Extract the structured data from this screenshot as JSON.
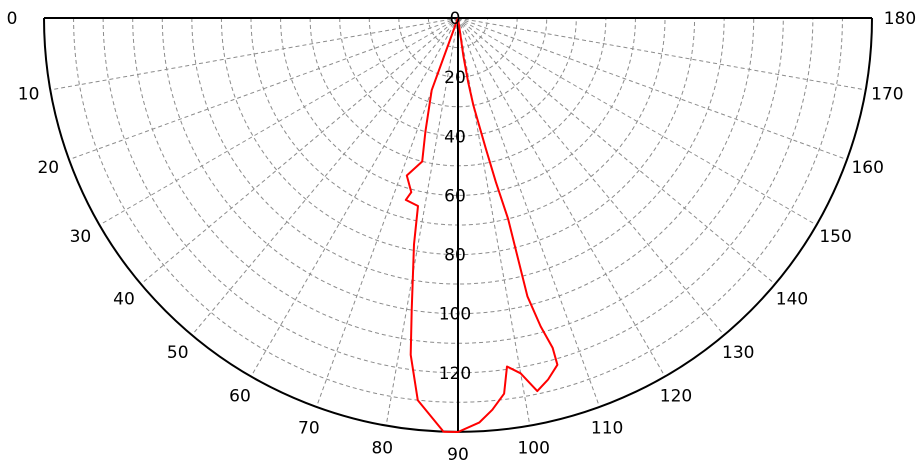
{
  "chart_data": {
    "type": "polar-line",
    "angular_axis": {
      "unit": "deg",
      "range": [
        0,
        180
      ],
      "tick_step": 10,
      "tick_labels": [
        "0",
        "10",
        "20",
        "30",
        "40",
        "50",
        "60",
        "70",
        "80",
        "90",
        "100",
        "110",
        "120",
        "130",
        "140",
        "150",
        "160",
        "170",
        "180"
      ]
    },
    "radial_axis": {
      "range": [
        0,
        140
      ],
      "tick_step": 10,
      "tick_labels": [
        "0",
        "20",
        "40",
        "60",
        "80",
        "100",
        "120"
      ],
      "tick_values": [
        0,
        20,
        40,
        60,
        80,
        100,
        120
      ]
    },
    "grid": true,
    "series": [
      {
        "color": "#ff0000",
        "points": [
          {
            "angle": 0,
            "r": 0
          },
          {
            "angle": 70,
            "r": 26
          },
          {
            "angle": 74,
            "r": 40
          },
          {
            "angle": 76,
            "r": 50
          },
          {
            "angle": 72,
            "r": 56
          },
          {
            "angle": 75,
            "r": 61
          },
          {
            "angle": 74,
            "r": 64
          },
          {
            "angle": 78,
            "r": 65
          },
          {
            "angle": 79,
            "r": 78
          },
          {
            "angle": 81,
            "r": 100
          },
          {
            "angle": 82,
            "r": 115
          },
          {
            "angle": 84,
            "r": 130
          },
          {
            "angle": 88,
            "r": 140
          },
          {
            "angle": 90,
            "r": 140
          },
          {
            "angle": 93,
            "r": 137
          },
          {
            "angle": 95,
            "r": 133
          },
          {
            "angle": 97,
            "r": 128
          },
          {
            "angle": 98,
            "r": 119
          },
          {
            "angle": 100,
            "r": 122
          },
          {
            "angle": 102,
            "r": 129
          },
          {
            "angle": 104,
            "r": 126
          },
          {
            "angle": 106,
            "r": 122
          },
          {
            "angle": 106,
            "r": 116
          },
          {
            "angle": 105,
            "r": 108
          },
          {
            "angle": 104,
            "r": 97
          },
          {
            "angle": 104,
            "r": 84
          },
          {
            "angle": 104,
            "r": 70
          },
          {
            "angle": 103,
            "r": 57
          },
          {
            "angle": 102,
            "r": 45
          },
          {
            "angle": 100,
            "r": 30
          },
          {
            "angle": 99,
            "r": 22
          },
          {
            "angle": 98,
            "r": 13
          },
          {
            "angle": 180,
            "r": 0
          }
        ]
      }
    ]
  }
}
